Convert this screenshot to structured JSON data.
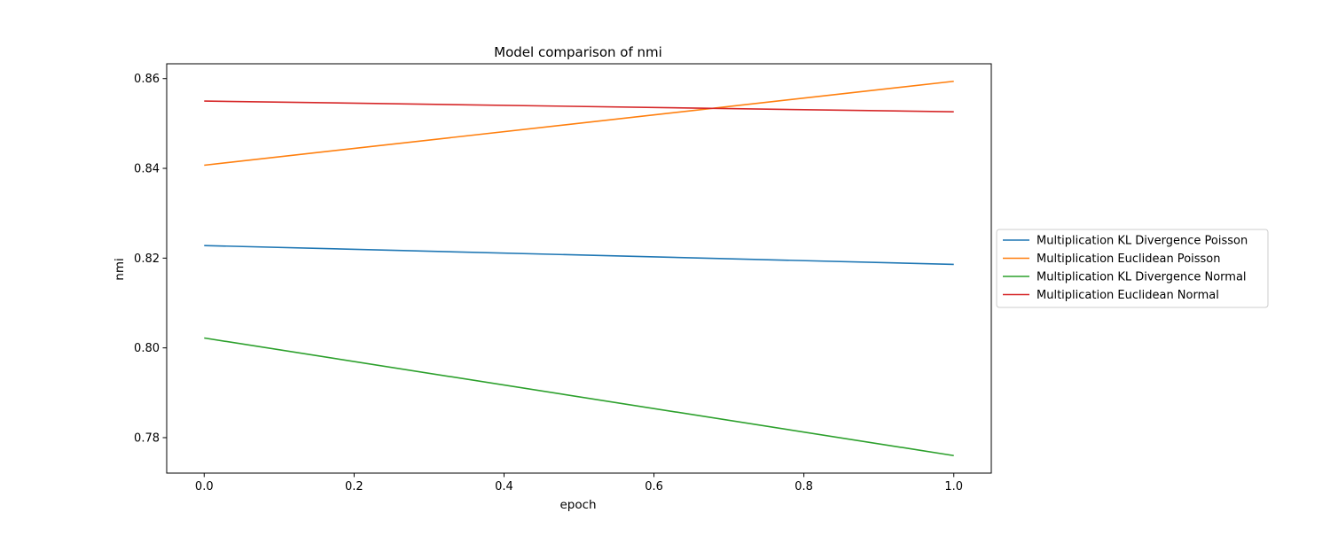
{
  "chart_data": {
    "type": "line",
    "title": "Model comparison of nmi",
    "xlabel": "epoch",
    "ylabel": "nmi",
    "xlim": [
      -0.05,
      1.05
    ],
    "ylim": [
      0.7721,
      0.8633
    ],
    "x_ticks": [
      0.0,
      0.2,
      0.4,
      0.6,
      0.8,
      1.0
    ],
    "x_tick_labels": [
      "0.0",
      "0.2",
      "0.4",
      "0.6",
      "0.8",
      "1.0"
    ],
    "y_ticks": [
      0.78,
      0.8,
      0.82,
      0.84,
      0.86
    ],
    "y_tick_labels": [
      "0.78",
      "0.80",
      "0.82",
      "0.84",
      "0.86"
    ],
    "grid": false,
    "legend_position": "outside-right",
    "x": [
      0,
      1
    ],
    "series": [
      {
        "name": "Multiplication KL Divergence Poisson",
        "color": "#1f77b4",
        "values": [
          0.8228,
          0.8186
        ]
      },
      {
        "name": "Multiplication Euclidean Poisson",
        "color": "#ff7f0e",
        "values": [
          0.8407,
          0.8594
        ]
      },
      {
        "name": "Multiplication KL Divergence Normal",
        "color": "#2ca02c",
        "values": [
          0.8022,
          0.776
        ]
      },
      {
        "name": "Multiplication Euclidean Normal",
        "color": "#d62728",
        "values": [
          0.855,
          0.8526
        ]
      }
    ]
  }
}
